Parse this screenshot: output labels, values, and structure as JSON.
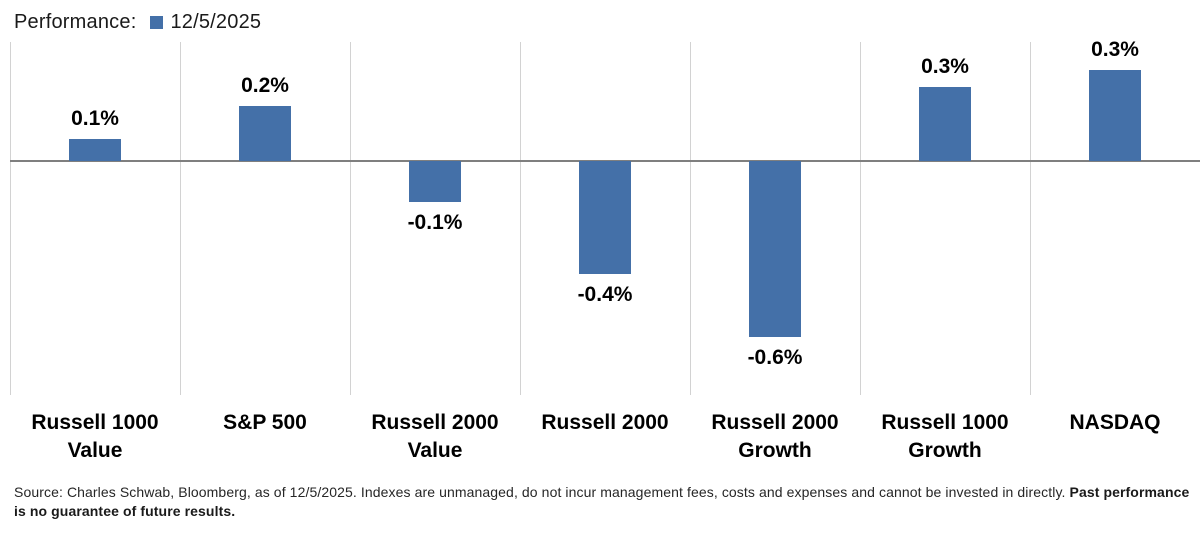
{
  "header": {
    "title": "Performance:",
    "legend": {
      "label": "12/5/2025",
      "color": "#4470a8",
      "marker": "square-icon"
    }
  },
  "chart_data": {
    "type": "bar",
    "title": "Performance",
    "series_name": "12/5/2025",
    "categories": [
      "Russell 1000 Value",
      "S&P 500",
      "Russell 2000 Value",
      "Russell 2000",
      "Russell 2000 Growth",
      "Russell 1000 Growth",
      "NASDAQ"
    ],
    "values": [
      0.1,
      0.2,
      -0.1,
      -0.4,
      -0.6,
      0.3,
      0.3
    ],
    "value_labels": [
      "0.1%",
      "0.2%",
      "-0.1%",
      "-0.4%",
      "-0.6%",
      "0.3%",
      "0.3%"
    ],
    "values_precise_est": [
      0.08,
      0.2,
      -0.15,
      -0.41,
      -0.64,
      0.27,
      0.33
    ],
    "unit": "percent",
    "bar_color": "#4470a8",
    "zero_line_color": "#7f7f7f",
    "gridline_color": "#d2d2d2",
    "grid": "vertical-only",
    "legend_position": "top-left",
    "ylim": [
      -0.85,
      0.43
    ],
    "xlabel": "",
    "ylabel": ""
  },
  "footnote": {
    "normal": "Source: Charles Schwab, Bloomberg, as of 12/5/2025.  Indexes are unmanaged, do not incur management fees, costs and expenses and cannot be invested in directly. ",
    "bold": "Past performance is no guarantee of future results."
  }
}
